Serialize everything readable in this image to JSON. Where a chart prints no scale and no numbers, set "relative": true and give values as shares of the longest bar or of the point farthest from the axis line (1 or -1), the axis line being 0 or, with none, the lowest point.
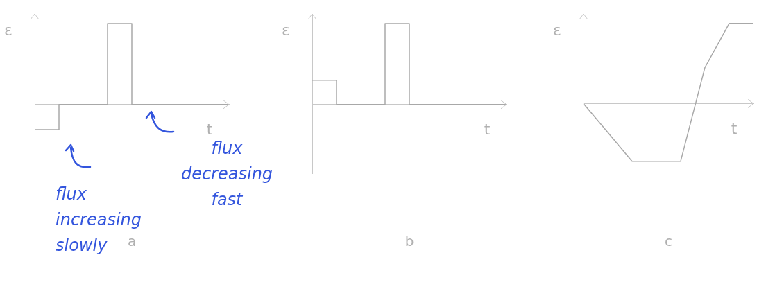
{
  "chart_data": [
    {
      "type": "step",
      "title": "a",
      "xlabel": "t",
      "ylabel": "ε",
      "relative": true,
      "categories": [
        null,
        null,
        null,
        null,
        null,
        null,
        null,
        null,
        null
      ],
      "series": [
        {
          "color": "#a8a8a8",
          "values": [
            -0.31,
            -0.31,
            0,
            0,
            1,
            0,
            0,
            0,
            0
          ]
        }
      ],
      "annotations": [
        "flux increasing slowly",
        "flux decreasing fast"
      ]
    },
    {
      "type": "step",
      "title": "b",
      "xlabel": "t",
      "ylabel": "ε",
      "relative": true,
      "categories": [
        null,
        null,
        null,
        null,
        null,
        null,
        null,
        null,
        null
      ],
      "series": [
        {
          "color": "#a8a8a8",
          "values": [
            0.3,
            0.3,
            0,
            0,
            1,
            0,
            0,
            0,
            0
          ]
        }
      ]
    },
    {
      "type": "line",
      "title": "c",
      "xlabel": "t",
      "ylabel": "ε",
      "relative": true,
      "categories": [
        null,
        null,
        null,
        null,
        null,
        null,
        null,
        null
      ],
      "series": [
        {
          "color": "#a8a8a8",
          "values": [
            0,
            -0.36,
            -0.72,
            -0.72,
            -0.72,
            0.45,
            1,
            1
          ]
        }
      ]
    }
  ]
}
